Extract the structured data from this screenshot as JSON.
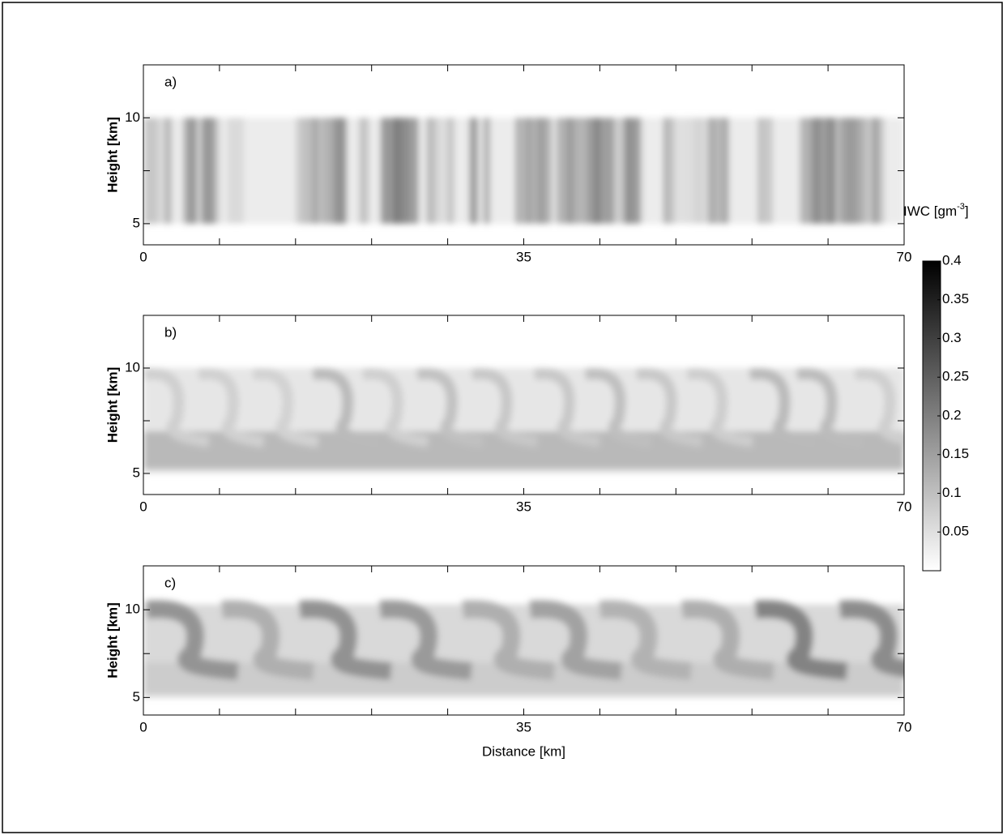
{
  "chart_data": [
    {
      "type": "heatmap",
      "panel_label": "a)",
      "ylabel": "Height [km]",
      "xlim": [
        0,
        70
      ],
      "ylim": [
        4,
        12.5
      ],
      "xticks": [
        0,
        35,
        70
      ],
      "xticks_unlabeled": [
        7,
        14,
        21,
        28,
        42,
        49,
        56,
        63
      ],
      "yticks": [
        5,
        10
      ],
      "yticks_unlabeled": [
        7.5
      ]
    },
    {
      "type": "heatmap",
      "panel_label": "b)",
      "ylabel": "Height [km]",
      "xlim": [
        0,
        70
      ],
      "ylim": [
        4,
        12.5
      ],
      "xticks": [
        0,
        35,
        70
      ],
      "xticks_unlabeled": [
        7,
        14,
        21,
        28,
        42,
        49,
        56,
        63
      ],
      "yticks": [
        5,
        10
      ],
      "yticks_unlabeled": [
        7.5
      ]
    },
    {
      "type": "heatmap",
      "panel_label": "c)",
      "ylabel": "Height [km]",
      "xlabel": "Distance [km]",
      "xlim": [
        0,
        70
      ],
      "ylim": [
        4,
        12.5
      ],
      "xticks": [
        0,
        35,
        70
      ],
      "xticks_unlabeled": [
        7,
        14,
        21,
        28,
        42,
        49,
        56,
        63
      ],
      "yticks": [
        5,
        10
      ],
      "yticks_unlabeled": [
        7.5
      ]
    },
    {
      "type": "colorbar",
      "label": "IWC [gm",
      "label_superscript": "-3",
      "label_end": "]",
      "clim": [
        0,
        0.4
      ],
      "ticks": [
        0.05,
        0.1,
        0.15,
        0.2,
        0.25,
        0.3,
        0.35,
        0.4
      ]
    }
  ]
}
